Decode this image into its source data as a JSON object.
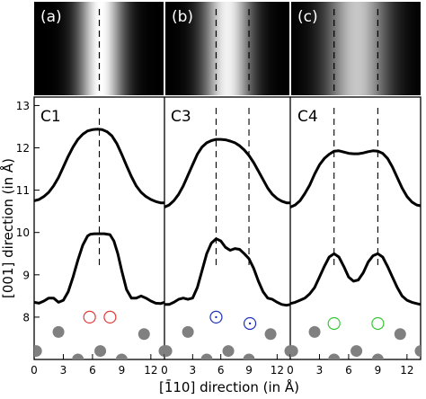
{
  "chart_data": {
    "type": "line",
    "ylabel": "[001] direction (in Å)",
    "xlabel": "[1̄10] direction (in Å)",
    "xlim": [
      0,
      13.4
    ],
    "ylim": [
      7.0,
      13.2
    ],
    "y_ticks": [
      8,
      9,
      10,
      11,
      12,
      13
    ],
    "x_ticks": [
      0,
      3,
      6,
      9,
      12
    ],
    "panels": [
      {
        "id": "a",
        "image_label": "(a)",
        "label": "C1",
        "tick_labels": [
          "0",
          "3",
          "6",
          "9",
          "12"
        ],
        "bright_band": {
          "center": 6.9,
          "width": 2.3,
          "peak": 1.0
        },
        "dashed_lines_x": [
          6.7
        ],
        "upper_curve": {
          "x": [
            0,
            0.5,
            1,
            1.5,
            2,
            2.5,
            3,
            3.5,
            4,
            4.5,
            5,
            5.5,
            6,
            6.5,
            7,
            7.5,
            8,
            8.5,
            9,
            9.5,
            10,
            10.5,
            11,
            11.5,
            12,
            12.5,
            13,
            13.4
          ],
          "y": [
            10.75,
            10.78,
            10.85,
            10.95,
            11.1,
            11.3,
            11.55,
            11.8,
            12.02,
            12.2,
            12.32,
            12.4,
            12.43,
            12.44,
            12.43,
            12.38,
            12.28,
            12.1,
            11.85,
            11.58,
            11.32,
            11.1,
            10.95,
            10.85,
            10.78,
            10.73,
            10.7,
            10.7
          ]
        },
        "lower_curve": {
          "x": [
            0,
            0.5,
            1,
            1.5,
            2,
            2.5,
            3,
            3.5,
            4,
            4.5,
            5,
            5.5,
            5.8,
            6.2,
            6.7,
            7.2,
            7.8,
            8.2,
            8.6,
            9,
            9.5,
            10,
            10.5,
            11,
            11.5,
            12,
            12.5,
            13,
            13.4
          ],
          "y": [
            8.35,
            8.33,
            8.38,
            8.45,
            8.45,
            8.35,
            8.4,
            8.6,
            8.95,
            9.35,
            9.7,
            9.92,
            9.96,
            9.97,
            9.97,
            9.97,
            9.95,
            9.8,
            9.5,
            9.1,
            8.65,
            8.45,
            8.45,
            8.5,
            8.45,
            8.38,
            8.33,
            8.32,
            8.35
          ]
        },
        "open_circles": [
          {
            "x": 5.7,
            "y": 8.0
          },
          {
            "x": 7.8,
            "y": 8.0
          }
        ],
        "open_circle_color": "#e03a3a",
        "circle_dots": false,
        "filled_circles": [
          {
            "x": 0.2,
            "y": 7.2
          },
          {
            "x": 2.5,
            "y": 7.65
          },
          {
            "x": 4.5,
            "y": 7.0
          },
          {
            "x": 6.8,
            "y": 7.2
          },
          {
            "x": 9.0,
            "y": 7.0
          },
          {
            "x": 11.3,
            "y": 7.6
          },
          {
            "x": 13.4,
            "y": 7.2
          }
        ]
      },
      {
        "id": "b",
        "image_label": "(b)",
        "label": "C3",
        "tick_labels": [
          "0",
          "3",
          "6",
          "9",
          "12"
        ],
        "bright_band": {
          "center": 6.7,
          "width": 2.6,
          "peak": 0.95
        },
        "dashed_lines_x": [
          5.5,
          9.0
        ],
        "upper_curve": {
          "x": [
            0,
            0.5,
            1,
            1.5,
            2,
            2.5,
            3,
            3.5,
            4,
            4.5,
            5,
            5.5,
            6,
            6.5,
            7,
            7.5,
            8,
            8.5,
            9,
            9.5,
            10,
            10.5,
            11,
            11.5,
            12,
            12.5,
            13,
            13.4
          ],
          "y": [
            10.6,
            10.65,
            10.75,
            10.9,
            11.1,
            11.35,
            11.6,
            11.85,
            12.02,
            12.12,
            12.17,
            12.2,
            12.2,
            12.19,
            12.16,
            12.12,
            12.05,
            11.95,
            11.82,
            11.65,
            11.45,
            11.25,
            11.05,
            10.9,
            10.8,
            10.74,
            10.7,
            10.7
          ]
        },
        "lower_curve": {
          "x": [
            0,
            0.5,
            1,
            1.5,
            2,
            2.5,
            3,
            3.5,
            4,
            4.5,
            5,
            5.5,
            6,
            6.5,
            7,
            7.5,
            8,
            8.5,
            9,
            9.5,
            10,
            10.5,
            11,
            11.5,
            12,
            12.5,
            13,
            13.4
          ],
          "y": [
            8.3,
            8.3,
            8.35,
            8.42,
            8.45,
            8.42,
            8.45,
            8.7,
            9.1,
            9.5,
            9.75,
            9.85,
            9.8,
            9.65,
            9.58,
            9.62,
            9.6,
            9.5,
            9.38,
            9.15,
            8.85,
            8.6,
            8.45,
            8.42,
            8.35,
            8.3,
            8.28,
            8.3
          ]
        },
        "open_circles": [
          {
            "x": 5.5,
            "y": 8.0
          },
          {
            "x": 9.1,
            "y": 7.85
          }
        ],
        "open_circle_color": "#1f2fb8",
        "circle_dots": true,
        "filled_circles": [
          {
            "x": 0.2,
            "y": 7.2
          },
          {
            "x": 2.5,
            "y": 7.65
          },
          {
            "x": 4.5,
            "y": 7.0
          },
          {
            "x": 6.8,
            "y": 7.2
          },
          {
            "x": 9.0,
            "y": 7.0
          },
          {
            "x": 11.3,
            "y": 7.6
          },
          {
            "x": 13.4,
            "y": 7.2
          }
        ]
      },
      {
        "id": "c",
        "image_label": "(c)",
        "label": "C4",
        "tick_labels": [
          "0",
          "3",
          "6",
          "9",
          "12"
        ],
        "bright_band": {
          "center": 6.8,
          "width": 3.2,
          "peak": 0.78
        },
        "dashed_lines_x": [
          4.5,
          9.0
        ],
        "upper_curve": {
          "x": [
            0,
            0.5,
            1,
            1.5,
            2,
            2.5,
            3,
            3.5,
            4,
            4.5,
            5,
            5.5,
            6,
            6.5,
            7,
            7.5,
            8,
            8.5,
            9,
            9.5,
            10,
            10.5,
            11,
            11.5,
            12,
            12.5,
            13,
            13.4
          ],
          "y": [
            10.6,
            10.65,
            10.75,
            10.92,
            11.12,
            11.38,
            11.6,
            11.75,
            11.85,
            11.92,
            11.93,
            11.9,
            11.87,
            11.86,
            11.86,
            11.88,
            11.91,
            11.93,
            11.92,
            11.87,
            11.75,
            11.55,
            11.3,
            11.05,
            10.85,
            10.72,
            10.65,
            10.63
          ]
        },
        "lower_curve": {
          "x": [
            0,
            0.5,
            1,
            1.5,
            2,
            2.5,
            3,
            3.5,
            4,
            4.5,
            5,
            5.5,
            6,
            6.5,
            7,
            7.5,
            8,
            8.5,
            9,
            9.5,
            10,
            10.5,
            11,
            11.5,
            12,
            12.5,
            13,
            13.4
          ],
          "y": [
            8.32,
            8.35,
            8.4,
            8.45,
            8.55,
            8.7,
            8.95,
            9.2,
            9.42,
            9.5,
            9.42,
            9.2,
            8.95,
            8.85,
            8.88,
            9.05,
            9.3,
            9.45,
            9.5,
            9.42,
            9.2,
            8.95,
            8.7,
            8.5,
            8.4,
            8.35,
            8.32,
            8.3
          ]
        },
        "open_circles": [
          {
            "x": 4.5,
            "y": 7.85
          },
          {
            "x": 9.0,
            "y": 7.85
          }
        ],
        "open_circle_color": "#37c437",
        "circle_dots": false,
        "filled_circles": [
          {
            "x": 0.2,
            "y": 7.2
          },
          {
            "x": 2.5,
            "y": 7.65
          },
          {
            "x": 4.5,
            "y": 7.0
          },
          {
            "x": 6.8,
            "y": 7.2
          },
          {
            "x": 9.0,
            "y": 7.0
          },
          {
            "x": 11.3,
            "y": 7.6
          },
          {
            "x": 13.4,
            "y": 7.2
          }
        ]
      }
    ],
    "colors": {
      "curve": "#000000",
      "atom": "#808080",
      "band_dark": "#000000",
      "band_light": "#ffffff"
    }
  }
}
